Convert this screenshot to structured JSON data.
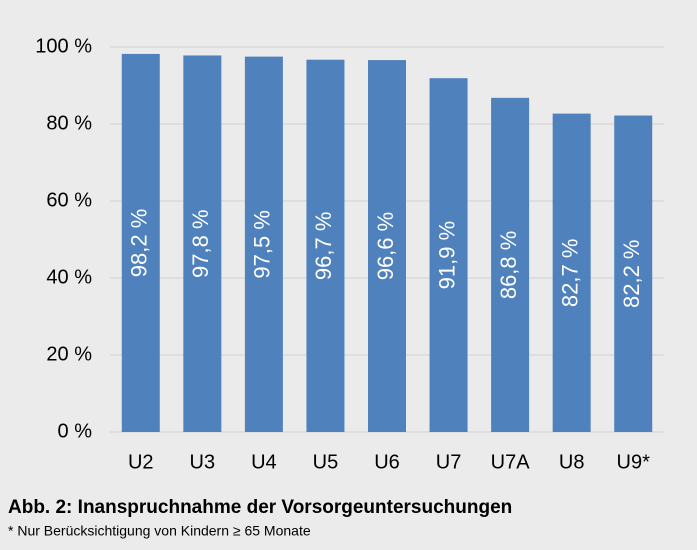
{
  "chart_data": {
    "type": "bar",
    "title": "Abb. 2: Inanspruchnahme der Vorsorgeuntersuchungen",
    "subtitle": "* Nur Berücksichtigung von Kindern ≥ 65 Monate",
    "categories": [
      "U2",
      "U3",
      "U4",
      "U5",
      "U6",
      "U7",
      "U7A",
      "U8",
      "U9*"
    ],
    "values": [
      98.2,
      97.8,
      97.5,
      96.7,
      96.6,
      91.9,
      86.8,
      82.7,
      82.2
    ],
    "value_labels": [
      "98,2 %",
      "97,8 %",
      "97,5 %",
      "96,7 %",
      "96,6 %",
      "91,9 %",
      "86,8 %",
      "82,7 %",
      "82,2 %"
    ],
    "color": "#4f81bd",
    "ylim": [
      0,
      100
    ],
    "yticks": [
      {
        "value": 0,
        "label": "0 %"
      },
      {
        "value": 20,
        "label": "20 %"
      },
      {
        "value": 40,
        "label": "40 %"
      },
      {
        "value": 60,
        "label": "60 %"
      },
      {
        "value": 80,
        "label": "80 %"
      },
      {
        "value": 100,
        "label": "100 %"
      }
    ],
    "grid": true
  }
}
